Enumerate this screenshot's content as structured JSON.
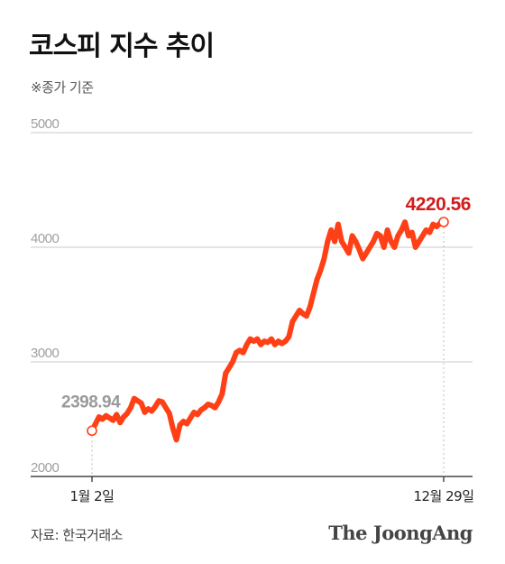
{
  "header": {
    "title": "코스피 지수 추이",
    "subtitle": "※종가 기준"
  },
  "footer": {
    "source": "자료: 한국거래소",
    "brand": "The JoongAng"
  },
  "colors": {
    "line": "#ff4016",
    "end_label": "#d21c1c",
    "start_label": "#9a9a9a",
    "grid": "#c8c8c8"
  },
  "chart_data": {
    "type": "line",
    "title": "코스피 지수 추이",
    "subtitle": "※종가 기준",
    "x_tick_labels": [
      "1월 2일",
      "12월 29일"
    ],
    "y_ticks": [
      2000,
      3000,
      4000,
      5000
    ],
    "ylim": [
      2000,
      5000
    ],
    "grid": true,
    "start_value": 2398.94,
    "end_value": 4220.56,
    "start_label": "2398.94",
    "end_label": "4220.56",
    "series": [
      {
        "x": [
          0.0,
          0.01,
          0.02,
          0.03,
          0.04,
          0.05,
          0.06,
          0.07,
          0.08,
          0.09,
          0.1,
          0.11,
          0.12,
          0.13,
          0.14,
          0.15,
          0.16,
          0.17,
          0.18,
          0.19,
          0.2,
          0.21,
          0.22,
          0.23,
          0.24,
          0.25,
          0.26,
          0.27,
          0.28,
          0.29,
          0.3,
          0.31,
          0.32,
          0.33,
          0.34,
          0.35,
          0.36,
          0.37,
          0.38,
          0.39,
          0.4,
          0.41,
          0.42,
          0.43,
          0.44,
          0.45,
          0.46,
          0.47,
          0.48,
          0.49,
          0.5,
          0.51,
          0.52,
          0.53,
          0.54,
          0.55,
          0.56,
          0.57,
          0.58,
          0.59,
          0.6,
          0.61,
          0.62,
          0.63,
          0.64,
          0.65,
          0.66,
          0.67,
          0.68,
          0.69,
          0.7,
          0.71,
          0.72,
          0.73,
          0.74,
          0.75,
          0.76,
          0.77,
          0.78,
          0.79,
          0.8,
          0.81,
          0.82,
          0.83,
          0.84,
          0.85,
          0.86,
          0.87,
          0.88,
          0.89,
          0.9,
          0.91,
          0.92,
          0.93,
          0.94,
          0.95,
          0.96,
          0.97,
          0.98,
          0.99,
          1.0
        ],
        "values": [
          2399,
          2460,
          2520,
          2500,
          2530,
          2510,
          2490,
          2540,
          2470,
          2520,
          2550,
          2600,
          2680,
          2660,
          2640,
          2560,
          2590,
          2570,
          2610,
          2660,
          2650,
          2600,
          2550,
          2420,
          2320,
          2450,
          2480,
          2460,
          2510,
          2560,
          2540,
          2580,
          2600,
          2630,
          2620,
          2600,
          2650,
          2720,
          2900,
          2950,
          3000,
          3080,
          3100,
          3080,
          3150,
          3200,
          3180,
          3200,
          3150,
          3180,
          3170,
          3200,
          3150,
          3180,
          3160,
          3180,
          3220,
          3350,
          3400,
          3450,
          3420,
          3400,
          3480,
          3600,
          3720,
          3800,
          3900,
          4050,
          4150,
          4050,
          4200,
          4050,
          4000,
          3950,
          4100,
          4050,
          3980,
          3900,
          3950,
          4000,
          4050,
          4120,
          4100,
          4000,
          4150,
          4050,
          4000,
          4100,
          4150,
          4220,
          4100,
          4130,
          4000,
          4050,
          4100,
          4150,
          4130,
          4200,
          4180,
          4210,
          4220.56
        ]
      }
    ]
  }
}
